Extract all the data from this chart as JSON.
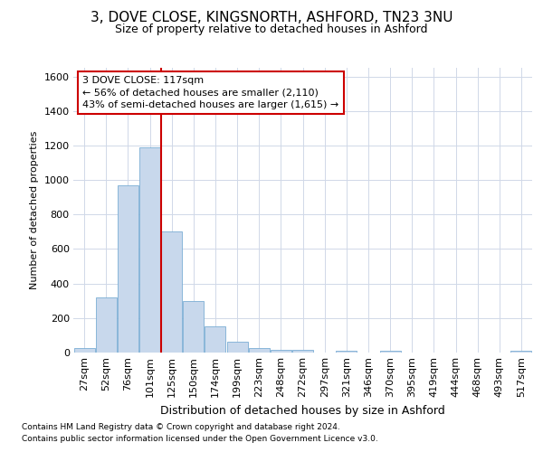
{
  "title1": "3, DOVE CLOSE, KINGSNORTH, ASHFORD, TN23 3NU",
  "title2": "Size of property relative to detached houses in Ashford",
  "xlabel": "Distribution of detached houses by size in Ashford",
  "ylabel": "Number of detached properties",
  "categories": [
    "27sqm",
    "52sqm",
    "76sqm",
    "101sqm",
    "125sqm",
    "150sqm",
    "174sqm",
    "199sqm",
    "223sqm",
    "248sqm",
    "272sqm",
    "297sqm",
    "321sqm",
    "346sqm",
    "370sqm",
    "395sqm",
    "419sqm",
    "444sqm",
    "468sqm",
    "493sqm",
    "517sqm"
  ],
  "values": [
    25,
    320,
    970,
    1190,
    700,
    300,
    150,
    65,
    25,
    15,
    15,
    0,
    10,
    0,
    10,
    0,
    0,
    0,
    0,
    0,
    10
  ],
  "bar_color": "#c8d8ec",
  "bar_edge_color": "#7aadd4",
  "vline_color": "#cc0000",
  "vline_index": 4,
  "annotation_text": "3 DOVE CLOSE: 117sqm\n← 56% of detached houses are smaller (2,110)\n43% of semi-detached houses are larger (1,615) →",
  "annotation_box_facecolor": "#ffffff",
  "annotation_box_edgecolor": "#cc0000",
  "ylim": [
    0,
    1650
  ],
  "yticks": [
    0,
    200,
    400,
    600,
    800,
    1000,
    1200,
    1400,
    1600
  ],
  "grid_color": "#d0d8e8",
  "bg_color": "#ffffff",
  "plot_bg_color": "#ffffff",
  "footer1": "Contains HM Land Registry data © Crown copyright and database right 2024.",
  "footer2": "Contains public sector information licensed under the Open Government Licence v3.0.",
  "title1_fontsize": 11,
  "title2_fontsize": 9,
  "xlabel_fontsize": 9,
  "ylabel_fontsize": 8,
  "tick_fontsize": 8,
  "annotation_fontsize": 8,
  "footer_fontsize": 6.5
}
